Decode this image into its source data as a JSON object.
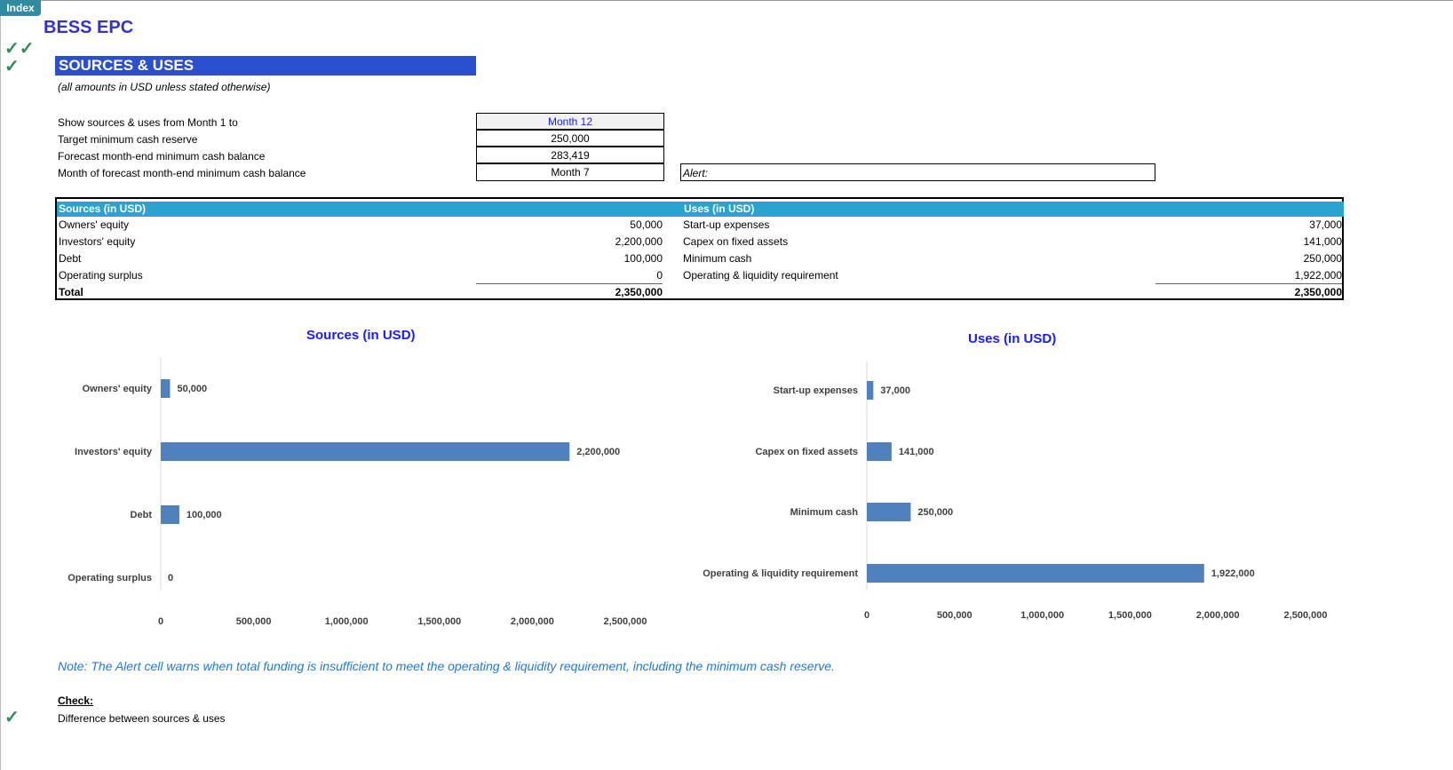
{
  "index_tab": "Index",
  "title": "BESS EPC",
  "section": "SOURCES & USES",
  "subtitle": "(all amounts in USD unless stated otherwise)",
  "inputs": [
    {
      "label": "Show sources & uses from Month 1 to",
      "value": "Month 12"
    },
    {
      "label": "Target minimum cash reserve",
      "value": "250,000"
    },
    {
      "label": "Forecast month-end minimum cash balance",
      "value": "283,419"
    },
    {
      "label": "Month of forecast month-end minimum cash balance",
      "value": "Month 7"
    }
  ],
  "alert_label": "Alert:",
  "table": {
    "sources_header": "Sources (in USD)",
    "uses_header": "Uses (in USD)",
    "sources": [
      {
        "label": "Owners' equity",
        "value": "50,000"
      },
      {
        "label": "Investors' equity",
        "value": "2,200,000"
      },
      {
        "label": "Debt",
        "value": "100,000"
      },
      {
        "label": "Operating surplus",
        "value": "0"
      }
    ],
    "uses": [
      {
        "label": "Start-up expenses",
        "value": "37,000"
      },
      {
        "label": "Capex on fixed assets",
        "value": "141,000"
      },
      {
        "label": "Minimum cash",
        "value": "250,000"
      },
      {
        "label": "Operating & liquidity requirement",
        "value": "1,922,000"
      }
    ],
    "total_label": "Total",
    "sources_total": "2,350,000",
    "uses_total": "2,350,000"
  },
  "chart_data": [
    {
      "type": "bar",
      "orientation": "horizontal",
      "title": "Sources (in USD)",
      "categories": [
        "Owners' equity",
        "Investors' equity",
        "Debt",
        "Operating surplus"
      ],
      "values": [
        50000,
        2200000,
        100000,
        0
      ],
      "data_labels": [
        "50,000",
        "2,200,000",
        "100,000",
        "0"
      ],
      "xlim": [
        0,
        2500000
      ],
      "xticks": [
        "0",
        "500,000",
        "1,000,000",
        "1,500,000",
        "2,000,000",
        "2,500,000"
      ],
      "color": "#4f81bd"
    },
    {
      "type": "bar",
      "orientation": "horizontal",
      "title": "Uses (in USD)",
      "categories": [
        "Start-up expenses",
        "Capex on fixed assets",
        "Minimum cash",
        "Operating & liquidity requirement"
      ],
      "values": [
        37000,
        141000,
        250000,
        1922000
      ],
      "data_labels": [
        "37,000",
        "141,000",
        "250,000",
        "1,922,000"
      ],
      "xlim": [
        0,
        2500000
      ],
      "xticks": [
        "0",
        "500,000",
        "1,000,000",
        "1,500,000",
        "2,000,000",
        "2,500,000"
      ],
      "color": "#4f81bd"
    }
  ],
  "note": "Note: The Alert cell warns when total funding is insufficient to meet the operating & liquidity requirement, including the minimum cash reserve.",
  "check": {
    "title": "Check:",
    "label": "Difference between sources & uses"
  }
}
